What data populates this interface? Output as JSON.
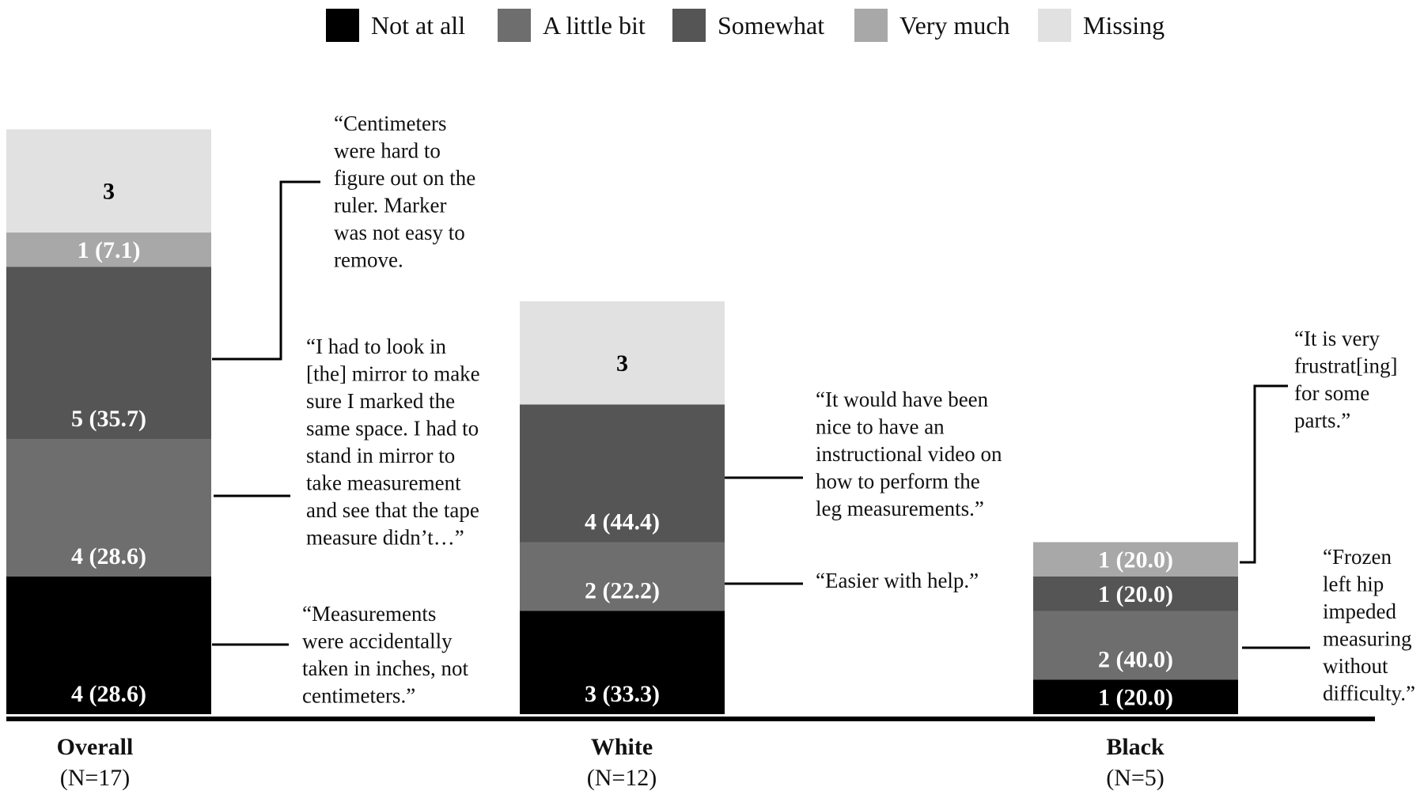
{
  "chart_data": {
    "type": "bar",
    "stacked": true,
    "legend": {
      "placement": "top",
      "items": [
        {
          "label": "Not at all",
          "color": "#000000"
        },
        {
          "label": "A little bit",
          "color": "#6e6e6e"
        },
        {
          "label": "Somewhat",
          "color": "#555555"
        },
        {
          "label": "Very much",
          "color": "#a8a8a8"
        },
        {
          "label": "Missing",
          "color": "#e1e1e1"
        }
      ]
    },
    "groups": [
      {
        "name": "Overall",
        "n_label": "(N=17)",
        "segments": [
          {
            "category": "Not at all",
            "value": 4,
            "label": "4 (28.6)"
          },
          {
            "category": "A little bit",
            "value": 4,
            "label": "4 (28.6)"
          },
          {
            "category": "Somewhat",
            "value": 5,
            "label": "5 (35.7)"
          },
          {
            "category": "Very much",
            "value": 1,
            "label": "1 (7.1)"
          },
          {
            "category": "Missing",
            "value": 3,
            "label": "3"
          }
        ]
      },
      {
        "name": "White",
        "n_label": "(N=12)",
        "segments": [
          {
            "category": "Not at all",
            "value": 3,
            "label": "3 (33.3)"
          },
          {
            "category": "A little bit",
            "value": 2,
            "label": "2 (22.2)"
          },
          {
            "category": "Somewhat",
            "value": 4,
            "label": "4 (44.4)"
          },
          {
            "category": "Very much",
            "value": 0,
            "label": ""
          },
          {
            "category": "Missing",
            "value": 3,
            "label": "3"
          }
        ]
      },
      {
        "name": "Black",
        "n_label": "(N=5)",
        "segments": [
          {
            "category": "Not at all",
            "value": 1,
            "label": "1 (20.0)"
          },
          {
            "category": "A little bit",
            "value": 2,
            "label": "2 (40.0)"
          },
          {
            "category": "Somewhat",
            "value": 1,
            "label": "1 (20.0)"
          },
          {
            "category": "Very much",
            "value": 1,
            "label": "1 (20.0)"
          },
          {
            "category": "Missing",
            "value": 0,
            "label": ""
          }
        ]
      }
    ],
    "quotes": [
      {
        "group": "Overall",
        "lines": [
          "“Centimeters",
          "were hard to",
          "figure out on the",
          "ruler. Marker",
          "was not easy to",
          "remove."
        ]
      },
      {
        "group": "Overall",
        "lines": [
          "“I had to look in",
          "[the] mirror to make",
          "sure I marked the",
          "same space. I had to",
          "stand in mirror to",
          "take measurement",
          "and see that the tape",
          "measure didn’t…”"
        ]
      },
      {
        "group": "Overall",
        "lines": [
          "“Measurements",
          "were accidentally",
          "taken in inches, not",
          "centimeters.”"
        ]
      },
      {
        "group": "White",
        "lines": [
          "“It would have been",
          "nice to have an",
          "instructional video on",
          "how to perform the",
          "leg measurements.”"
        ]
      },
      {
        "group": "White",
        "lines": [
          "“Easier with help.”"
        ]
      },
      {
        "group": "Black",
        "lines": [
          "“It is very",
          "frustrat[ing]",
          "for some",
          "parts.”"
        ]
      },
      {
        "group": "Black",
        "lines": [
          "“Frozen",
          "left hip",
          "impeded",
          "measuring",
          "without",
          "difficulty.”"
        ]
      }
    ]
  }
}
